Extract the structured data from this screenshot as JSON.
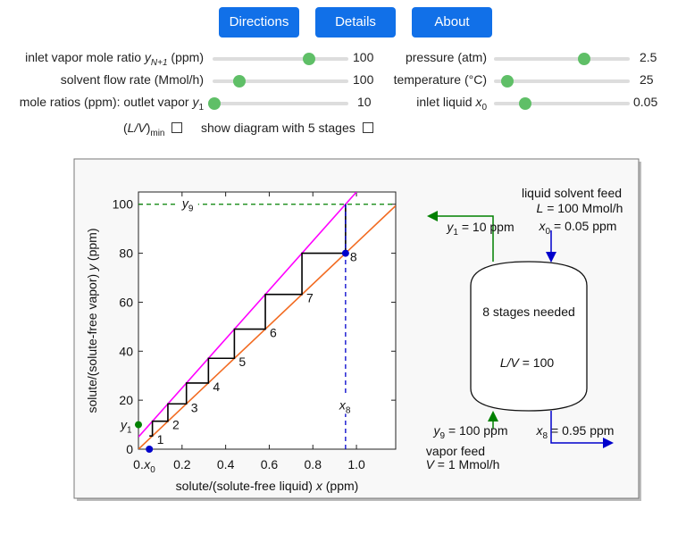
{
  "buttons": [
    "Directions",
    "Details",
    "About"
  ],
  "controls": {
    "inlet_vapor": {
      "label": [
        "inlet vapor mole ratio ",
        "y",
        "N+1",
        " (ppm)"
      ],
      "value": 100
    },
    "solvent_flow": {
      "label": [
        "solvent flow rate (Mmol/h)"
      ],
      "value": 100
    },
    "outlet_vapor": {
      "label": [
        "mole ratios (ppm): outlet vapor ",
        "y",
        "1"
      ],
      "value": 10
    },
    "pressure": {
      "label": [
        "pressure (atm)"
      ],
      "value": 2.5
    },
    "temperature": {
      "label": [
        "temperature (°C)"
      ],
      "value": 25
    },
    "inlet_liquid": {
      "label": [
        "inlet liquid ",
        "x",
        "0"
      ],
      "value": 0.05
    },
    "checkbox_min": [
      "(",
      "L/V",
      ")",
      "min"
    ],
    "checkbox_stages": "show diagram with 5 stages"
  },
  "chart_data": {
    "type": "line",
    "x_label": [
      "solute/(solute-free liquid) ",
      "x",
      " (ppm)"
    ],
    "y_label": [
      "solute/(solute-free vapor) ",
      "y",
      " (ppm)"
    ],
    "xlim": [
      0,
      1.18
    ],
    "ylim": [
      0,
      105
    ],
    "xticks": [
      {
        "value": 0,
        "label": "0."
      },
      0.2,
      0.4,
      0.6,
      0.8,
      {
        "value": 1,
        "label": "1.0"
      }
    ],
    "yticks": [
      0,
      20,
      40,
      60,
      80,
      100
    ],
    "series": [
      {
        "color": "#f26b21",
        "x": [
          0,
          1.18
        ],
        "values": [
          0,
          99.4
        ]
      },
      {
        "color": "#ff00ff",
        "x": [
          0,
          1.0
        ],
        "values": [
          5,
          105
        ]
      },
      {
        "color": "#000000",
        "x": [
          0.95,
          0.95,
          0.75,
          0.75,
          0.582,
          0.582,
          0.44,
          0.44,
          0.321,
          0.321,
          0.22,
          0.22,
          0.135,
          0.135,
          0.064,
          0.064,
          0.05
        ],
        "values": [
          100,
          80,
          80,
          63.2,
          63.2,
          49,
          49,
          37.1,
          37.1,
          27,
          27,
          18.5,
          18.5,
          11.4,
          11.4,
          5.4,
          5.4
        ]
      }
    ],
    "stage_labels": [
      "1",
      "2",
      "3",
      "4",
      "5",
      "6",
      "7",
      "8"
    ],
    "y9_line": {
      "y": 100,
      "label": [
        "y",
        "9"
      ],
      "color": "#008000"
    },
    "x8_line": {
      "x": 0.95,
      "label": [
        "x",
        "8"
      ],
      "color": "#0000cc"
    },
    "y1_point": {
      "x": 0,
      "y": 10,
      "label": [
        "y",
        "1"
      ],
      "color": "#008000"
    },
    "x0_point": {
      "x": 0.05,
      "y": 0,
      "label": [
        "x",
        "0"
      ],
      "color": "#0000cc"
    },
    "end_point": {
      "x": 0.95,
      "y": 80,
      "color": "#0000cc"
    }
  },
  "diagram": {
    "solvent_feed": "liquid solvent feed",
    "L_flow": [
      "L",
      " = 100 Mmol/h"
    ],
    "x0": [
      "x",
      "0",
      " = 0.05 ppm"
    ],
    "y1": [
      "y",
      "1",
      " = 10 ppm"
    ],
    "stages_needed": "8 stages needed",
    "LV": [
      "L/V",
      " = 100"
    ],
    "y9": [
      "y",
      "9",
      " = 100 ppm"
    ],
    "x8": [
      "x",
      "8",
      " = 0.95 ppm"
    ],
    "vapor_feed": "vapor feed",
    "V_flow": [
      "V",
      " = 1 Mmol/h"
    ]
  }
}
